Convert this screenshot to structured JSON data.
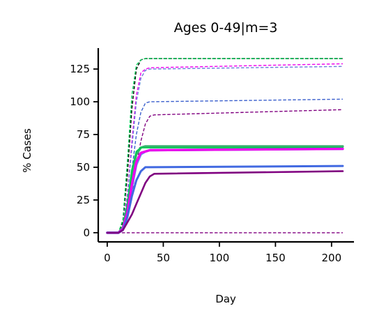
{
  "chart_data": {
    "type": "line",
    "title": "Ages 0-49|m=3",
    "xlabel": "Day",
    "ylabel": "% Cases",
    "xlim": [
      -8,
      220
    ],
    "ylim": [
      -7,
      141
    ],
    "xticks": [
      0,
      50,
      100,
      150,
      200
    ],
    "yticks": [
      0,
      25,
      50,
      75,
      100,
      125
    ],
    "xtick_labels": [
      "0",
      "50",
      "100",
      "150",
      "200"
    ],
    "ytick_labels": [
      "0",
      "25",
      "50",
      "75",
      "100",
      "125"
    ],
    "grid": false,
    "legend": "none",
    "series": [
      {
        "style": "dashed",
        "color": "#000000",
        "width": 1.4,
        "x": [
          0,
          10,
          14,
          18,
          22,
          26,
          30,
          34,
          210
        ],
        "y": [
          0,
          0,
          8,
          45,
          95,
          125,
          132,
          133,
          133
        ]
      },
      {
        "style": "dashed",
        "color": "#00c853",
        "width": 1.4,
        "x": [
          0,
          10,
          14,
          18,
          22,
          26,
          30,
          34,
          210
        ],
        "y": [
          0,
          0,
          10,
          55,
          105,
          128,
          132,
          133,
          133
        ]
      },
      {
        "style": "dashed",
        "color": "#ee00ee",
        "width": 1.4,
        "x": [
          0,
          10,
          14,
          18,
          22,
          26,
          30,
          34,
          38,
          210
        ],
        "y": [
          0,
          0,
          5,
          30,
          70,
          105,
          122,
          125,
          126,
          129
        ]
      },
      {
        "style": "dashed",
        "color": "#6a7fdb",
        "width": 1.4,
        "x": [
          0,
          10,
          14,
          18,
          22,
          26,
          30,
          34,
          38,
          210
        ],
        "y": [
          0,
          0,
          5,
          28,
          65,
          100,
          118,
          124,
          125,
          127
        ]
      },
      {
        "style": "dashed",
        "color": "#3a5fcd",
        "width": 1.4,
        "x": [
          0,
          10,
          14,
          18,
          22,
          26,
          30,
          34,
          38,
          210
        ],
        "y": [
          0,
          0,
          4,
          20,
          48,
          75,
          92,
          99,
          100,
          102
        ]
      },
      {
        "style": "dashed",
        "color": "#800080",
        "width": 1.4,
        "x": [
          0,
          10,
          14,
          18,
          22,
          26,
          30,
          34,
          38,
          42,
          210
        ],
        "y": [
          0,
          0,
          3,
          12,
          30,
          52,
          70,
          83,
          89,
          90,
          94
        ]
      },
      {
        "style": "dashed",
        "color": "#800080",
        "width": 1.4,
        "x": [
          0,
          210
        ],
        "y": [
          0,
          0
        ]
      },
      {
        "style": "solid",
        "color": "#3cb371",
        "width": 3.4,
        "x": [
          0,
          10,
          14,
          18,
          22,
          26,
          30,
          34,
          210
        ],
        "y": [
          0,
          0,
          4,
          20,
          45,
          60,
          65,
          66,
          66
        ]
      },
      {
        "style": "solid",
        "color": "#00c853",
        "width": 2.2,
        "x": [
          0,
          10,
          14,
          18,
          22,
          26,
          30,
          34,
          210
        ],
        "y": [
          0,
          0,
          4,
          22,
          48,
          62,
          65,
          65,
          65
        ]
      },
      {
        "style": "solid",
        "color": "#6495ed",
        "width": 3.4,
        "x": [
          0,
          10,
          14,
          18,
          22,
          26,
          30,
          34,
          38,
          210
        ],
        "y": [
          0,
          0,
          3,
          15,
          35,
          52,
          60,
          62,
          63,
          64
        ]
      },
      {
        "style": "solid",
        "color": "#ee00ee",
        "width": 3.4,
        "x": [
          0,
          10,
          14,
          18,
          22,
          26,
          30,
          34,
          38,
          210
        ],
        "y": [
          0,
          0,
          3,
          16,
          37,
          54,
          61,
          62,
          63,
          64
        ]
      },
      {
        "style": "solid",
        "color": "#4169e1",
        "width": 3.0,
        "x": [
          0,
          10,
          14,
          18,
          22,
          26,
          30,
          34,
          38,
          210
        ],
        "y": [
          0,
          0,
          2,
          12,
          28,
          40,
          47,
          50,
          50,
          51
        ]
      },
      {
        "style": "solid",
        "color": "#800080",
        "width": 2.6,
        "x": [
          0,
          10,
          14,
          18,
          22,
          26,
          30,
          34,
          38,
          42,
          210
        ],
        "y": [
          0,
          0,
          2,
          8,
          14,
          22,
          30,
          38,
          43,
          45,
          47
        ]
      }
    ]
  }
}
